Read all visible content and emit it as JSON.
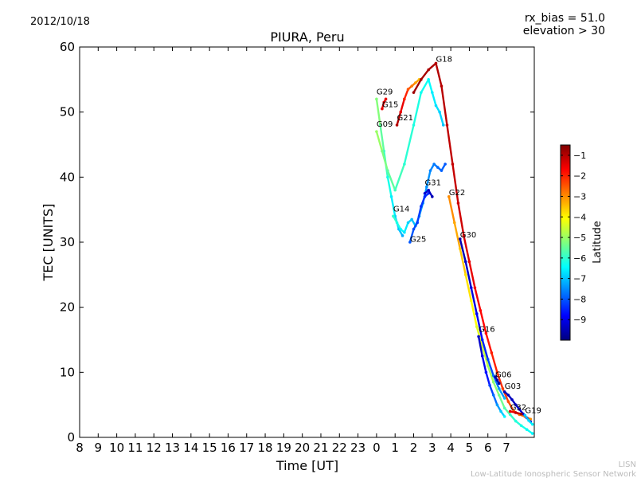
{
  "header": {
    "date": "2012/10/18",
    "rx_bias": "rx_bias = 51.0",
    "elevation": "elevation > 30"
  },
  "credit": {
    "short": "LISN",
    "long": "Low-Latitude Ionospheric Sensor Network"
  },
  "chart_data": {
    "type": "scatter",
    "title": "PIURA, Peru",
    "xlabel": "Time [UT]",
    "ylabel": "TEC [UNITS]",
    "xlim": [
      8,
      32.5
    ],
    "ylim": [
      0,
      60
    ],
    "x_tick_labels": [
      "8",
      "9",
      "10",
      "11",
      "12",
      "13",
      "14",
      "15",
      "16",
      "17",
      "18",
      "19",
      "20",
      "21",
      "22",
      "23",
      "0",
      "1",
      "2",
      "3",
      "4",
      "5",
      "6",
      "7"
    ],
    "y_ticks": [
      0,
      10,
      20,
      30,
      40,
      50,
      60
    ],
    "grid": false,
    "colorbar": {
      "label": "Latitude",
      "range": [
        -10,
        -0.5
      ],
      "ticks": [
        -1,
        -2,
        -3,
        -4,
        -5,
        -6,
        -7,
        -8,
        -9
      ],
      "tick_labels": [
        "−1",
        "−2",
        "−3",
        "−4",
        "−5",
        "−6",
        "−7",
        "−8",
        "−9"
      ],
      "stops": [
        "#00007f",
        "#0000ff",
        "#007fff",
        "#00ffff",
        "#7fff7f",
        "#ffff00",
        "#ff7f00",
        "#ff0000",
        "#7f0000"
      ]
    },
    "series": [
      {
        "name": "G29",
        "label_at": [
          24.0,
          52.5
        ],
        "lat": [
          -5.2,
          -6.0,
          -6.8,
          -7.2
        ],
        "x": [
          24.0,
          24.2,
          24.4,
          24.6,
          24.8,
          25.0,
          25.2,
          25.4
        ],
        "y": [
          52.0,
          48.0,
          44.0,
          40.0,
          37.0,
          34.0,
          32.0,
          31.0
        ]
      },
      {
        "name": "G15",
        "label_at": [
          24.3,
          50.5
        ],
        "lat": [
          -1.5,
          -1.5
        ],
        "x": [
          24.3,
          24.4,
          24.5
        ],
        "y": [
          50.5,
          51.5,
          52.0
        ]
      },
      {
        "name": "G21",
        "label_at": [
          25.1,
          48.5
        ],
        "lat": [
          -1.0,
          -2.5,
          -3.5
        ],
        "x": [
          25.1,
          25.3,
          25.5,
          25.7,
          25.9,
          26.1,
          26.3
        ],
        "y": [
          48.0,
          50.0,
          52.0,
          53.5,
          54.0,
          54.5,
          55.0
        ]
      },
      {
        "name": "G18",
        "label_at": [
          27.2,
          57.5
        ],
        "lat": [
          -0.8,
          -1.2,
          -2.0,
          -3.0
        ],
        "x": [
          26.0,
          26.4,
          26.8,
          27.2,
          27.5,
          27.8,
          28.1,
          28.4,
          28.7,
          29.0,
          29.3,
          29.6,
          29.9,
          30.2,
          30.5,
          30.8,
          31.1,
          31.4,
          31.7,
          32.0,
          32.3
        ],
        "y": [
          53.0,
          55.0,
          56.5,
          57.5,
          54.0,
          48.0,
          42.0,
          36.0,
          31.0,
          27.0,
          23.0,
          19.5,
          16.0,
          13.0,
          10.0,
          7.5,
          5.5,
          4.0,
          3.5,
          3.2,
          2.8
        ]
      },
      {
        "name": "G09",
        "label_at": [
          24.0,
          47.5
        ],
        "lat": [
          -5.0,
          -6.0,
          -6.5,
          -7.0
        ],
        "x": [
          24.0,
          24.3,
          24.6,
          25.0,
          25.5,
          26.0,
          26.4,
          26.8,
          27.0,
          27.2,
          27.4,
          27.6
        ],
        "y": [
          47.0,
          44.0,
          41.0,
          38.0,
          42.0,
          48.0,
          53.0,
          55.0,
          53.0,
          51.0,
          50.0,
          48.0
        ]
      },
      {
        "name": "G14",
        "label_at": [
          24.9,
          34.5
        ],
        "lat": [
          -6.0,
          -7.0,
          -7.5,
          -8.0
        ],
        "x": [
          24.9,
          25.1,
          25.3,
          25.5,
          25.7,
          25.9,
          26.1,
          26.3,
          26.5,
          26.7,
          26.9,
          27.1,
          27.3,
          27.5,
          27.7
        ],
        "y": [
          34.0,
          33.0,
          32.0,
          31.5,
          33.0,
          33.5,
          32.5,
          34.0,
          36.0,
          38.5,
          41.0,
          42.0,
          41.5,
          41.0,
          42.0
        ]
      },
      {
        "name": "G25",
        "label_at": [
          25.8,
          29.8
        ],
        "lat": [
          -8.0,
          -8.3,
          -8.5
        ],
        "x": [
          25.8,
          26.0,
          26.2,
          26.4,
          26.6,
          26.8
        ],
        "y": [
          30.0,
          32.0,
          33.0,
          35.5,
          37.0,
          37.5
        ]
      },
      {
        "name": "G31",
        "label_at": [
          26.6,
          38.5
        ],
        "lat": [
          -9.2,
          -9.5
        ],
        "x": [
          26.6,
          26.8,
          27.0
        ],
        "y": [
          37.5,
          38.0,
          37.0
        ]
      },
      {
        "name": "G22",
        "label_at": [
          27.9,
          37.0
        ],
        "lat": [
          -3.0,
          -4.0,
          -5.0,
          -6.0,
          -6.5
        ],
        "x": [
          27.9,
          28.2,
          28.5,
          28.8,
          29.1,
          29.4,
          29.7,
          30.0,
          30.3,
          30.6,
          30.9,
          31.2,
          31.5,
          31.8,
          32.1,
          32.4
        ],
        "y": [
          37.0,
          33.0,
          29.0,
          25.0,
          21.0,
          17.0,
          14.0,
          11.0,
          8.5,
          6.5,
          4.5,
          3.5,
          2.5,
          1.8,
          1.2,
          0.6
        ]
      },
      {
        "name": "G30",
        "label_at": [
          28.5,
          30.5
        ],
        "lat": [
          -9.5,
          -9.0,
          -8.0,
          -7.0
        ],
        "x": [
          28.5,
          28.8,
          29.1,
          29.4,
          29.7,
          30.0,
          30.3,
          30.6,
          30.9
        ],
        "y": [
          30.5,
          27.0,
          23.0,
          19.0,
          15.0,
          12.0,
          9.5,
          7.5,
          6.0
        ]
      },
      {
        "name": "G16",
        "label_at": [
          29.5,
          16.0
        ],
        "lat": [
          -9.3,
          -8.5,
          -7.5,
          -6.5
        ],
        "x": [
          29.5,
          29.7,
          29.9,
          30.1,
          30.3,
          30.5,
          30.7,
          30.9
        ],
        "y": [
          15.5,
          12.5,
          10.0,
          8.0,
          6.5,
          5.0,
          4.0,
          3.2
        ]
      },
      {
        "name": "G06",
        "label_at": [
          30.4,
          9.0
        ],
        "lat": [
          -9.6
        ],
        "x": [
          30.4,
          30.5,
          30.6
        ],
        "y": [
          9.3,
          8.8,
          8.3
        ]
      },
      {
        "name": "G03",
        "label_at": [
          30.9,
          7.2
        ],
        "lat": [
          -9.5,
          -9.3,
          -9.0
        ],
        "x": [
          30.9,
          31.1,
          31.3,
          31.5,
          31.7,
          31.9,
          32.1,
          32.3
        ],
        "y": [
          7.0,
          6.5,
          5.8,
          5.0,
          4.3,
          3.6,
          3.0,
          2.4
        ]
      },
      {
        "name": "G32",
        "label_at": [
          31.2,
          4.0
        ],
        "lat": [
          -1.5,
          -0.8
        ],
        "x": [
          31.2,
          31.5,
          31.8
        ],
        "y": [
          4.0,
          3.8,
          3.6
        ]
      },
      {
        "name": "G19",
        "label_at": [
          32.0,
          3.5
        ],
        "lat": [
          -7.0,
          -6.5
        ],
        "x": [
          32.0,
          32.2,
          32.4
        ],
        "y": [
          3.4,
          2.6,
          2.0
        ]
      }
    ]
  }
}
